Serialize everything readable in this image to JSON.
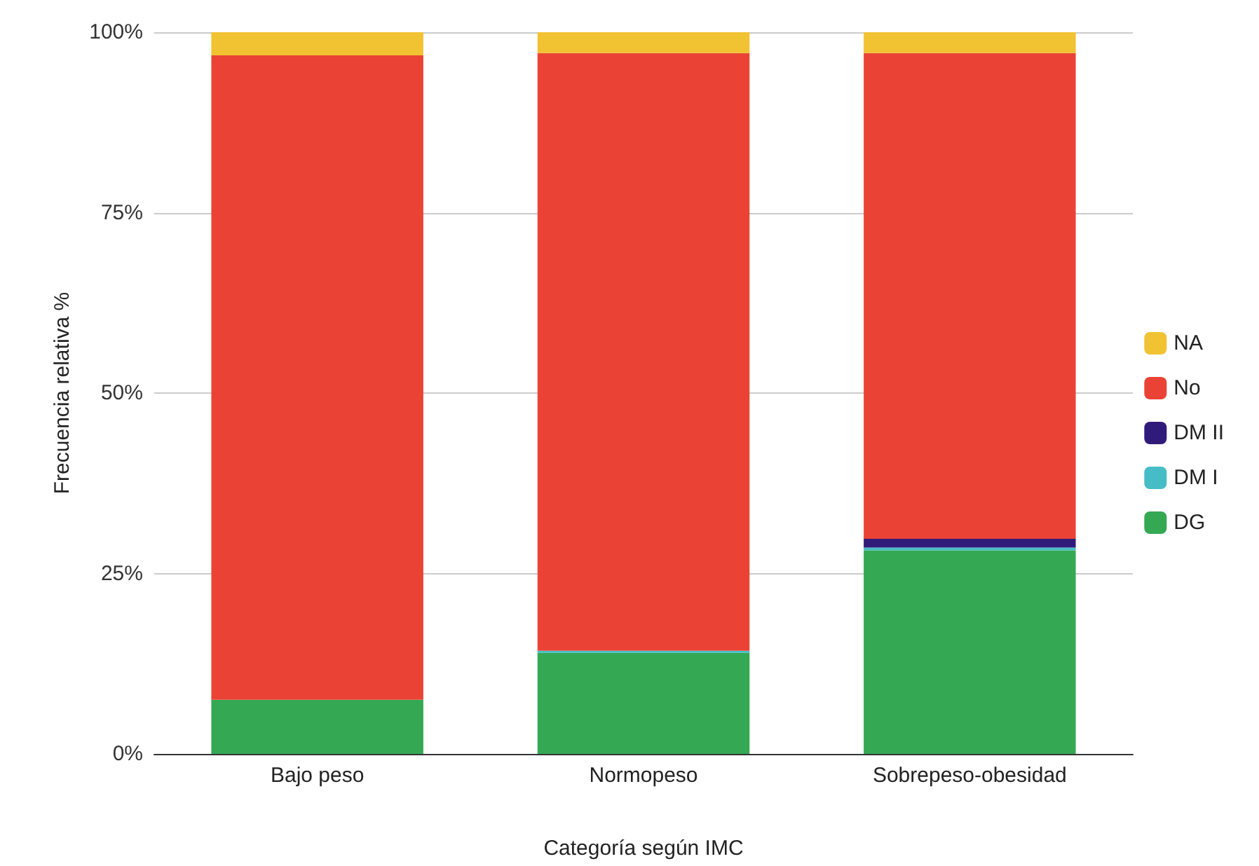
{
  "chart_data": {
    "type": "bar",
    "stacked": true,
    "xlabel": "Categoría según IMC",
    "ylabel": "Frecuencia relativa %",
    "categories": [
      "Bajo peso",
      "Normopeso",
      "Sobrepeso-obesidad"
    ],
    "series": [
      {
        "name": "DG",
        "color": "#34a853",
        "values": [
          7.5,
          14,
          28.2
        ]
      },
      {
        "name": "DM I",
        "color": "#46bdc6",
        "values": [
          0,
          0.3,
          0.4
        ]
      },
      {
        "name": "DM II",
        "color": "#311b7a",
        "values": [
          0,
          0,
          1.2
        ]
      },
      {
        "name": "No",
        "color": "#ea4335",
        "values": [
          89.3,
          82.8,
          67.3
        ]
      },
      {
        "name": "NA",
        "color": "#f1c232",
        "values": [
          3.2,
          2.9,
          2.9
        ]
      }
    ],
    "ylim": [
      0,
      100
    ],
    "yticks": [
      {
        "value": 0,
        "label": "0%"
      },
      {
        "value": 25,
        "label": "25%"
      },
      {
        "value": 50,
        "label": "50%"
      },
      {
        "value": 75,
        "label": "75%"
      },
      {
        "value": 100,
        "label": "100%"
      }
    ],
    "grid": "y",
    "legend": "right"
  }
}
